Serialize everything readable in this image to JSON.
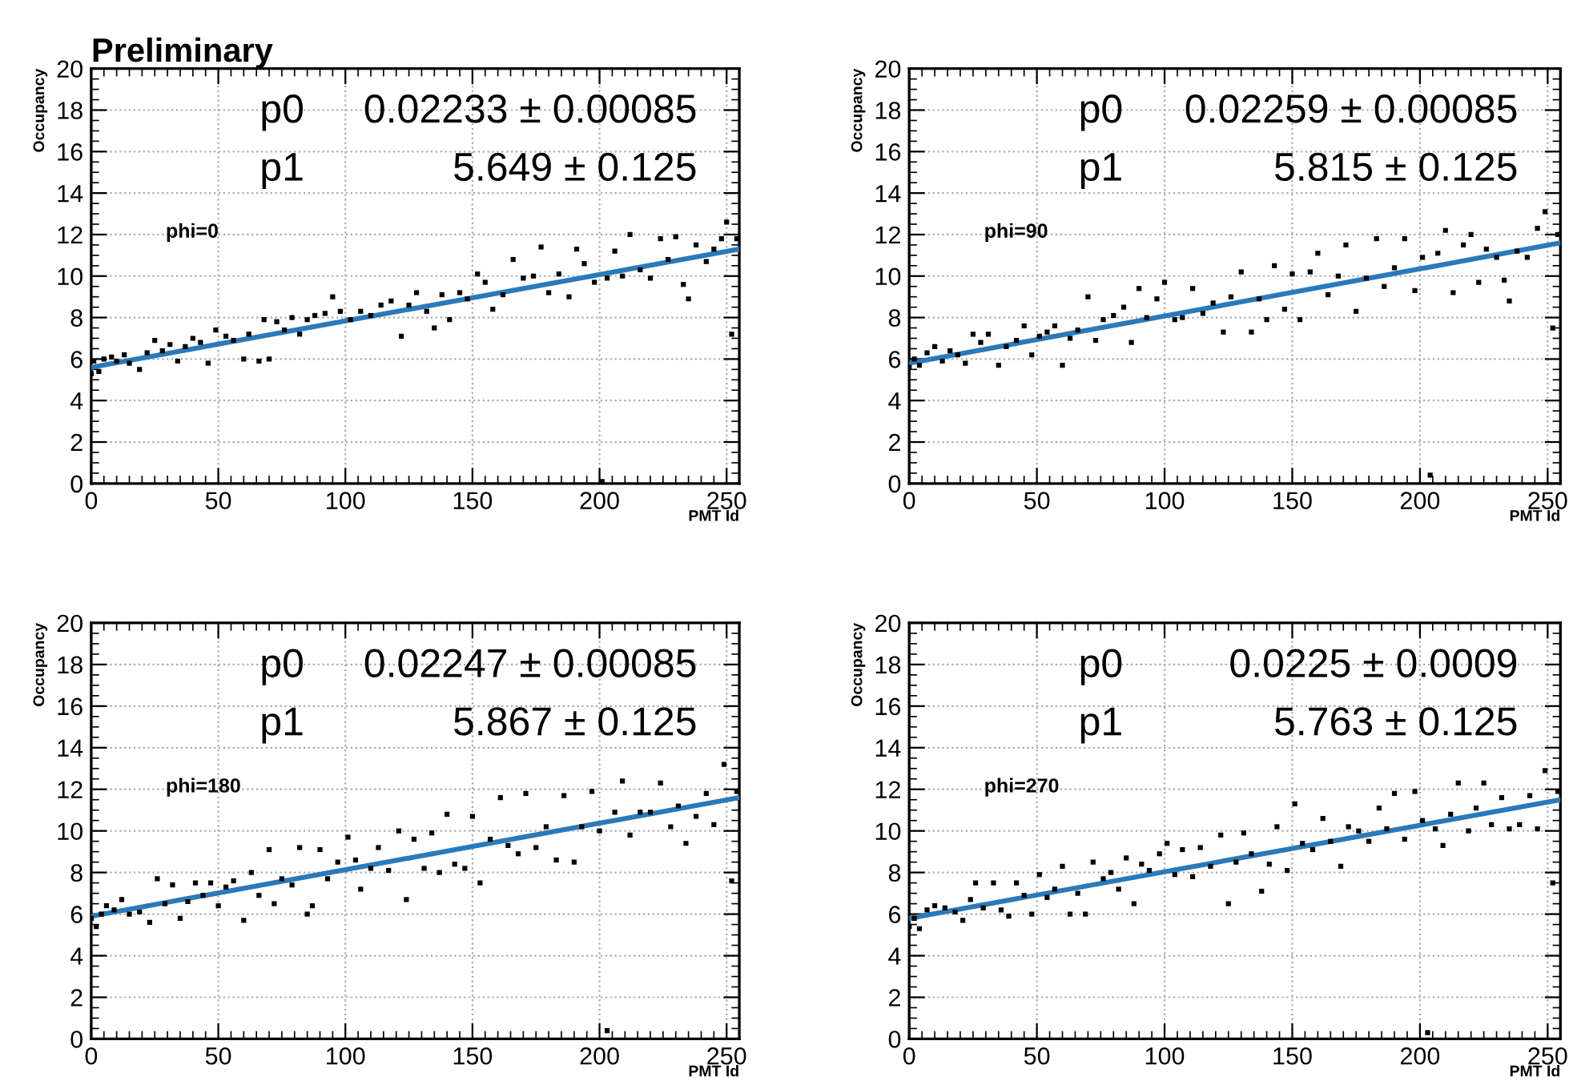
{
  "chart_data": [
    {
      "type": "scatter",
      "title": "Preliminary",
      "xlabel": "PMT Id",
      "ylabel": "Occupancy",
      "xlim": [
        0,
        255
      ],
      "ylim": [
        0,
        20
      ],
      "xticks": [
        0,
        50,
        100,
        150,
        200,
        250
      ],
      "yticks": [
        0,
        2,
        4,
        6,
        8,
        10,
        12,
        14,
        16,
        18,
        20
      ],
      "grid": true,
      "annotations": [
        "p0",
        "0.02233 ± 0.00085",
        "p1",
        "5.649 ± 0.125",
        "phi=0"
      ],
      "series": [
        {
          "marker": "square",
          "color": "#000000",
          "x": [
            0,
            1,
            3,
            5,
            8,
            10,
            13,
            15,
            19,
            22,
            25,
            28,
            31,
            34,
            37,
            40,
            43,
            46,
            49,
            53,
            56,
            60,
            62,
            66,
            68,
            70,
            73,
            76,
            79,
            82,
            85,
            88,
            92,
            95,
            98,
            102,
            106,
            110,
            114,
            118,
            122,
            125,
            128,
            132,
            135,
            138,
            141,
            145,
            148,
            152,
            155,
            158,
            162,
            166,
            170,
            174,
            177,
            180,
            184,
            188,
            191,
            194,
            198,
            201,
            203,
            206,
            209,
            212,
            216,
            220,
            224,
            227,
            230,
            233,
            235,
            238,
            242,
            245,
            248,
            250,
            252,
            254
          ],
          "values": [
            5.3,
            5.9,
            5.4,
            6.0,
            6.1,
            5.9,
            6.2,
            5.8,
            5.5,
            6.3,
            6.9,
            6.4,
            6.7,
            5.9,
            6.6,
            7.0,
            6.8,
            5.8,
            7.4,
            7.1,
            6.9,
            6.0,
            7.2,
            5.9,
            7.9,
            6.0,
            7.8,
            7.4,
            8.0,
            7.2,
            7.9,
            8.1,
            8.2,
            9.0,
            8.3,
            7.9,
            8.3,
            8.1,
            8.6,
            8.8,
            7.1,
            8.6,
            9.2,
            8.3,
            7.5,
            9.1,
            7.9,
            9.2,
            8.9,
            10.1,
            9.7,
            8.4,
            9.1,
            10.8,
            9.9,
            10.0,
            11.4,
            9.2,
            10.1,
            9.0,
            11.3,
            10.6,
            9.7,
            0.1,
            9.9,
            11.2,
            10.0,
            12.0,
            10.3,
            9.9,
            11.8,
            10.8,
            11.9,
            9.6,
            8.9,
            11.5,
            10.7,
            11.3,
            11.8,
            12.6,
            7.2,
            11.8
          ]
        },
        {
          "type": "line",
          "color": "#2a7ab9",
          "x": [
            0,
            255
          ],
          "values": [
            5.6,
            11.3
          ]
        }
      ]
    },
    {
      "type": "scatter",
      "xlabel": "PMT Id",
      "ylabel": "Occupancy",
      "xlim": [
        0,
        255
      ],
      "ylim": [
        0,
        20
      ],
      "xticks": [
        0,
        50,
        100,
        150,
        200,
        250
      ],
      "yticks": [
        0,
        2,
        4,
        6,
        8,
        10,
        12,
        14,
        16,
        18,
        20
      ],
      "grid": true,
      "annotations": [
        "p0",
        "0.02259 ± 0.00085",
        "p1",
        "5.815 ± 0.125",
        "phi=90"
      ],
      "series": [
        {
          "marker": "square",
          "color": "#000000",
          "x": [
            0,
            2,
            4,
            7,
            10,
            13,
            16,
            19,
            22,
            25,
            28,
            31,
            35,
            38,
            42,
            45,
            48,
            51,
            54,
            57,
            60,
            63,
            66,
            70,
            73,
            76,
            80,
            84,
            87,
            90,
            93,
            97,
            100,
            104,
            107,
            111,
            115,
            119,
            123,
            126,
            130,
            134,
            137,
            140,
            143,
            147,
            150,
            153,
            157,
            160,
            164,
            168,
            171,
            175,
            179,
            183,
            186,
            190,
            194,
            198,
            201,
            204,
            207,
            210,
            213,
            217,
            220,
            223,
            226,
            230,
            233,
            235,
            238,
            242,
            246,
            249,
            252,
            254
          ],
          "values": [
            5.6,
            6.0,
            5.7,
            6.3,
            6.6,
            5.9,
            6.4,
            6.2,
            5.8,
            7.2,
            6.8,
            7.2,
            5.7,
            6.6,
            6.9,
            7.6,
            6.2,
            7.1,
            7.3,
            7.6,
            5.7,
            7.0,
            7.4,
            9.0,
            6.9,
            7.9,
            8.1,
            8.5,
            6.8,
            9.4,
            8.0,
            8.9,
            9.7,
            7.9,
            8.0,
            9.4,
            8.2,
            8.7,
            7.3,
            9.0,
            10.2,
            7.3,
            8.9,
            7.9,
            10.5,
            8.4,
            10.1,
            7.9,
            10.2,
            11.1,
            9.1,
            10.0,
            11.5,
            8.3,
            9.9,
            11.8,
            9.5,
            10.4,
            11.8,
            9.3,
            10.9,
            0.4,
            11.1,
            12.2,
            9.2,
            11.5,
            12.0,
            9.7,
            11.3,
            10.9,
            9.8,
            8.8,
            11.2,
            10.9,
            12.3,
            13.1,
            7.5,
            12.0
          ]
        },
        {
          "type": "line",
          "color": "#2a7ab9",
          "x": [
            0,
            255
          ],
          "values": [
            5.8,
            11.6
          ]
        }
      ]
    },
    {
      "type": "scatter",
      "xlabel": "PMT Id",
      "ylabel": "Occupancy",
      "xlim": [
        0,
        255
      ],
      "ylim": [
        0,
        20
      ],
      "xticks": [
        0,
        50,
        100,
        150,
        200,
        250
      ],
      "yticks": [
        0,
        2,
        4,
        6,
        8,
        10,
        12,
        14,
        16,
        18,
        20
      ],
      "grid": true,
      "annotations": [
        "p0",
        "0.02247 ± 0.00085",
        "p1",
        "5.867 ± 0.125",
        "phi=180"
      ],
      "series": [
        {
          "marker": "square",
          "color": "#000000",
          "x": [
            0,
            2,
            4,
            6,
            9,
            12,
            15,
            19,
            23,
            26,
            29,
            32,
            35,
            38,
            41,
            44,
            47,
            50,
            53,
            56,
            60,
            63,
            66,
            70,
            72,
            75,
            79,
            82,
            85,
            87,
            90,
            93,
            97,
            101,
            104,
            106,
            110,
            113,
            117,
            121,
            124,
            127,
            131,
            134,
            137,
            140,
            143,
            147,
            150,
            153,
            157,
            161,
            164,
            168,
            171,
            175,
            179,
            183,
            186,
            190,
            193,
            197,
            200,
            203,
            206,
            209,
            212,
            216,
            220,
            224,
            228,
            231,
            234,
            238,
            242,
            245,
            249,
            252,
            254
          ],
          "values": [
            5.8,
            5.4,
            6.0,
            6.4,
            6.2,
            6.7,
            6.0,
            6.1,
            5.6,
            7.7,
            6.5,
            7.4,
            5.8,
            6.6,
            7.5,
            6.9,
            7.5,
            6.4,
            7.3,
            7.6,
            5.7,
            8.0,
            6.9,
            9.1,
            6.5,
            7.7,
            7.4,
            9.2,
            6.0,
            6.4,
            9.1,
            7.7,
            8.5,
            9.7,
            8.6,
            7.2,
            8.2,
            9.2,
            8.1,
            10.0,
            6.7,
            9.6,
            8.2,
            9.9,
            8.0,
            10.8,
            8.4,
            8.2,
            10.7,
            7.5,
            9.6,
            11.6,
            9.3,
            8.9,
            11.8,
            9.2,
            10.2,
            8.6,
            11.7,
            8.5,
            10.2,
            11.9,
            10.0,
            0.4,
            10.9,
            12.4,
            9.8,
            10.9,
            10.9,
            12.3,
            10.2,
            11.2,
            9.4,
            10.7,
            11.8,
            10.3,
            13.2,
            7.6,
            11.9
          ]
        },
        {
          "type": "line",
          "color": "#2a7ab9",
          "x": [
            0,
            255
          ],
          "values": [
            5.9,
            11.6
          ]
        }
      ]
    },
    {
      "type": "scatter",
      "xlabel": "PMT Id",
      "ylabel": "Occupancy",
      "xlim": [
        0,
        255
      ],
      "ylim": [
        0,
        20
      ],
      "xticks": [
        0,
        50,
        100,
        150,
        200,
        250
      ],
      "yticks": [
        0,
        2,
        4,
        6,
        8,
        10,
        12,
        14,
        16,
        18,
        20
      ],
      "grid": true,
      "annotations": [
        "p0",
        "0.0225 ± 0.0009",
        "p1",
        "5.763 ± 0.125",
        "phi=270"
      ],
      "series": [
        {
          "marker": "square",
          "color": "#000000",
          "x": [
            0,
            2,
            4,
            7,
            10,
            14,
            18,
            21,
            24,
            26,
            29,
            33,
            36,
            39,
            42,
            45,
            48,
            51,
            54,
            57,
            60,
            63,
            66,
            69,
            72,
            76,
            79,
            82,
            85,
            88,
            91,
            94,
            98,
            101,
            104,
            107,
            111,
            114,
            118,
            122,
            125,
            128,
            131,
            134,
            138,
            141,
            144,
            148,
            151,
            154,
            158,
            162,
            165,
            169,
            172,
            176,
            180,
            184,
            187,
            190,
            194,
            198,
            201,
            203,
            206,
            209,
            212,
            215,
            219,
            222,
            225,
            228,
            232,
            235,
            239,
            243,
            246,
            249,
            252,
            254
          ],
          "values": [
            5.4,
            5.8,
            5.3,
            6.2,
            6.4,
            6.3,
            6.1,
            5.7,
            6.7,
            7.5,
            6.3,
            7.5,
            6.2,
            5.9,
            7.5,
            6.9,
            6.0,
            7.9,
            6.8,
            7.2,
            8.3,
            6.0,
            7.0,
            6.0,
            8.5,
            7.7,
            8.0,
            7.2,
            8.7,
            6.5,
            8.4,
            8.1,
            8.9,
            9.4,
            7.9,
            9.1,
            7.8,
            9.2,
            8.3,
            9.8,
            6.5,
            8.5,
            9.9,
            8.9,
            7.1,
            8.4,
            10.2,
            8.1,
            11.3,
            9.4,
            9.1,
            10.6,
            9.5,
            8.3,
            10.2,
            10.0,
            9.5,
            11.1,
            10.1,
            11.8,
            9.6,
            11.9,
            10.5,
            0.3,
            10.1,
            9.3,
            10.8,
            12.3,
            10.0,
            11.1,
            12.3,
            10.3,
            11.6,
            10.1,
            10.3,
            11.7,
            10.1,
            12.9,
            7.5,
            11.9
          ]
        },
        {
          "type": "line",
          "color": "#2a7ab9",
          "x": [
            0,
            255
          ],
          "values": [
            5.8,
            11.5
          ]
        }
      ]
    }
  ]
}
